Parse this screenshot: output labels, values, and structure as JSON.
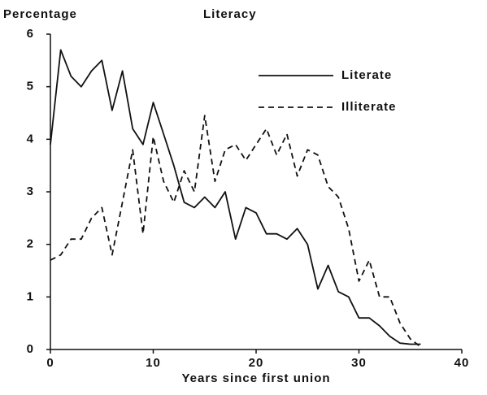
{
  "chart_data": {
    "type": "line",
    "title": "Literacy",
    "ylabel": "Percentage",
    "xlabel": "Years since first union",
    "x": [
      0,
      1,
      2,
      3,
      4,
      5,
      6,
      7,
      8,
      9,
      10,
      11,
      12,
      13,
      14,
      15,
      16,
      17,
      18,
      19,
      20,
      21,
      22,
      23,
      24,
      25,
      26,
      27,
      28,
      29,
      30,
      31,
      32,
      33,
      34,
      35,
      36
    ],
    "series": [
      {
        "name": "Literate",
        "color": "#111111",
        "dash": "solid",
        "values": [
          3.9,
          5.7,
          5.2,
          5.0,
          5.3,
          5.5,
          4.55,
          5.3,
          4.2,
          3.9,
          4.7,
          4.1,
          3.5,
          2.8,
          2.7,
          2.9,
          2.7,
          3.0,
          2.1,
          2.7,
          2.6,
          2.2,
          2.2,
          2.1,
          2.3,
          2.0,
          1.15,
          1.6,
          1.1,
          1.0,
          0.6,
          0.6,
          0.45,
          0.25,
          0.12,
          0.1,
          0.1
        ]
      },
      {
        "name": "Illiterate",
        "color": "#111111",
        "dash": "dashed",
        "values": [
          1.7,
          1.8,
          2.1,
          2.1,
          2.5,
          2.7,
          1.8,
          2.8,
          3.8,
          2.2,
          4.05,
          3.2,
          2.8,
          3.4,
          3.0,
          4.45,
          3.2,
          3.8,
          3.9,
          3.6,
          3.9,
          4.2,
          3.7,
          4.1,
          3.3,
          3.8,
          3.7,
          3.1,
          2.9,
          2.3,
          1.3,
          1.7,
          1.0,
          1.0,
          0.5,
          0.2,
          0.05
        ]
      }
    ],
    "xlim": [
      0,
      40
    ],
    "xticks": [
      0,
      10,
      20,
      30,
      40
    ],
    "ylim": [
      0,
      6
    ],
    "yticks": [
      0,
      1,
      2,
      3,
      4,
      5,
      6
    ],
    "grid": false,
    "legend": "upper right"
  }
}
